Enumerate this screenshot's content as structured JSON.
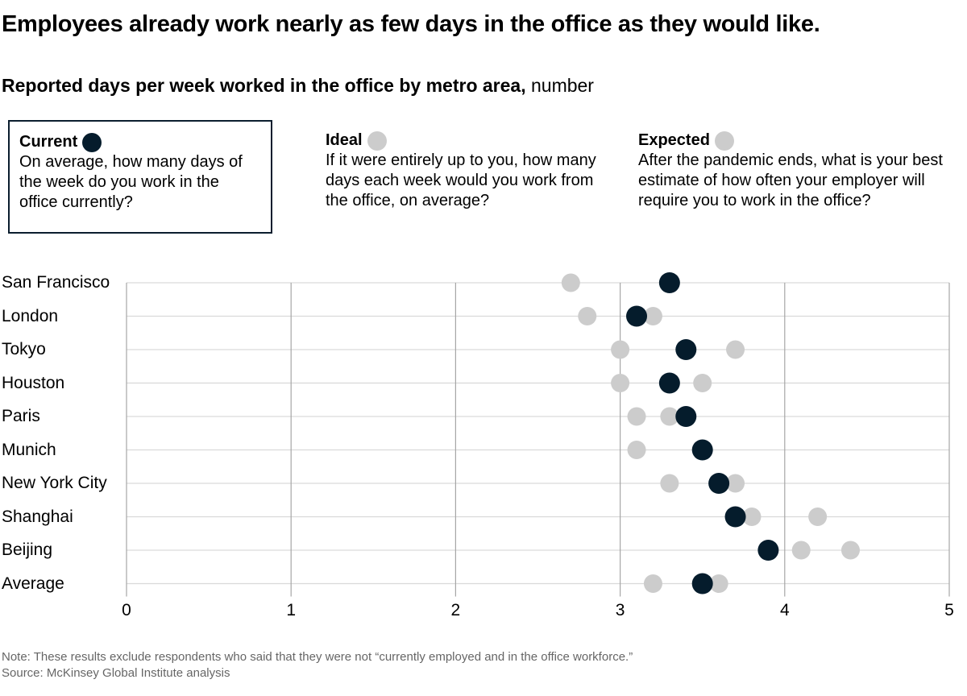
{
  "header": {
    "title": "Employees already work nearly as few days in the office as they would like.",
    "subtitle_bold": "Reported days per week worked in the office by metro area,",
    "subtitle_unit": " number"
  },
  "legend": [
    {
      "name": "Current",
      "question": "On average, how many days of the week do you work in the office currently?",
      "color": "#051c2c"
    },
    {
      "name": "Ideal",
      "question": "If it were entirely up to you, how many days each week would you work from the office, on average?",
      "color": "#cccccc"
    },
    {
      "name": "Expected",
      "question": "After the pandemic ends, what is your best estimate of how often your employer will require you to work in the office?",
      "color": "#cccccc"
    }
  ],
  "chart_data": {
    "type": "scatter",
    "subtype": "dot-plot",
    "title": "Employees already work nearly as few days in the office as they would like.",
    "subtitle": "Reported days per week worked in the office by metro area, number",
    "categories": [
      "San Francisco",
      "London",
      "Tokyo",
      "Houston",
      "Paris",
      "Munich",
      "New York City",
      "Shanghai",
      "Beijing",
      "Average"
    ],
    "series": [
      {
        "name": "Ideal",
        "color": "#cccccc",
        "values": [
          2.7,
          2.8,
          3.0,
          3.0,
          3.1,
          3.1,
          3.3,
          3.8,
          4.1,
          3.2
        ]
      },
      {
        "name": "Expected",
        "color": "#cccccc",
        "values": [
          3.3,
          3.2,
          3.7,
          3.5,
          3.3,
          3.5,
          3.7,
          4.2,
          4.4,
          3.6
        ]
      },
      {
        "name": "Current",
        "color": "#051c2c",
        "values": [
          3.3,
          3.1,
          3.4,
          3.3,
          3.4,
          3.5,
          3.6,
          3.7,
          3.9,
          3.5
        ]
      }
    ],
    "xlim": [
      0,
      5
    ],
    "xticks": [
      "0",
      "1",
      "2",
      "3",
      "4",
      "5"
    ],
    "xlabel": "",
    "ylabel": "",
    "grid": true,
    "legend_position": "top"
  },
  "footer": {
    "note": "Note: These results exclude respondents who said that they were not “currently employed and in the office workforce.”",
    "source": "Source: McKinsey Global Institute analysis"
  }
}
